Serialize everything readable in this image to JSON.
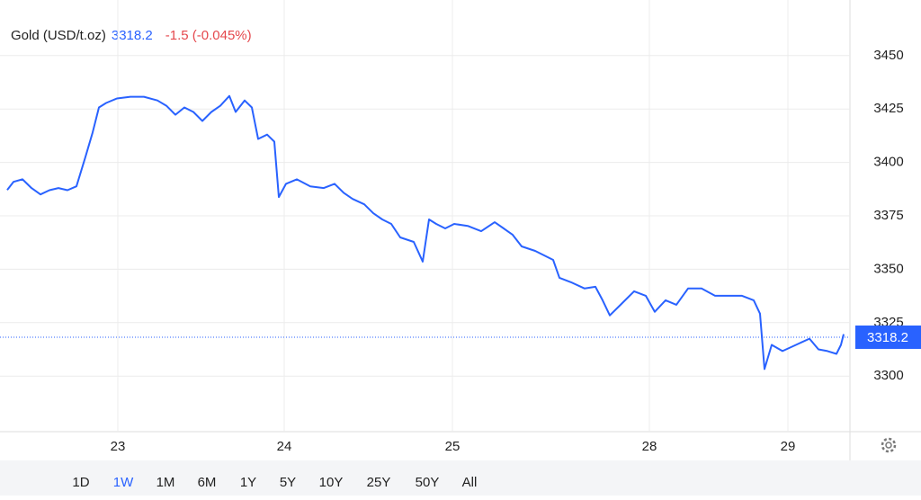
{
  "chart_data": {
    "type": "line",
    "title": "Gold (USD/t.oz)",
    "last_value": 3318.2,
    "change": "-1.5 (-0.045%)",
    "ranges": [
      "1D",
      "1W",
      "1M",
      "6M",
      "1Y",
      "5Y",
      "10Y",
      "25Y",
      "50Y",
      "All"
    ],
    "selected_range": 1,
    "color": "#2962ff",
    "grid": true,
    "xlim": [
      0,
      94.5
    ],
    "xticks": [
      {
        "value": 13.1,
        "label": "23"
      },
      {
        "value": 31.6,
        "label": "24"
      },
      {
        "value": 50.3,
        "label": "25"
      },
      {
        "value": 72.2,
        "label": "28"
      },
      {
        "value": 87.6,
        "label": "29"
      }
    ],
    "ylim": [
      3274,
      3476
    ],
    "yticks": [
      3300,
      3325,
      3350,
      3375,
      3400,
      3425,
      3450
    ],
    "x": [
      0.8,
      1.5,
      2.5,
      3.5,
      4.5,
      5.5,
      6.5,
      7.5,
      8.5,
      9.5,
      10.3,
      11,
      11.8,
      13,
      14.5,
      16,
      17.5,
      18.5,
      19.5,
      20.5,
      21.5,
      22.5,
      23.5,
      24.5,
      25.5,
      26.2,
      27.2,
      28,
      28.7,
      29.7,
      30.5,
      31,
      31.8,
      33,
      34.5,
      36,
      37.2,
      38.2,
      39.2,
      40.5,
      41.5,
      42.5,
      43.5,
      44.5,
      46,
      47,
      47.7,
      48.5,
      49.5,
      50.5,
      52,
      53.5,
      55,
      56,
      57,
      58,
      59.5,
      60.5,
      61.5,
      62.2,
      63.5,
      65,
      66.2,
      67,
      67.8,
      69,
      70.5,
      71.8,
      72.8,
      74,
      75.2,
      76.5,
      78,
      79.5,
      81,
      82.5,
      83.8,
      84.5,
      85,
      85.8,
      87,
      88.5,
      90,
      91,
      92,
      93,
      93.5,
      93.8
    ],
    "values": [
      3387.1,
      3390.9,
      3392.1,
      3388,
      3385,
      3387,
      3388,
      3387,
      3388.8,
      3402.6,
      3414,
      3425.7,
      3427.8,
      3429.9,
      3430.7,
      3430.7,
      3429,
      3426.5,
      3422.3,
      3425.7,
      3423.6,
      3419.4,
      3423.6,
      3426.5,
      3431.1,
      3423.6,
      3429,
      3425.7,
      3411,
      3413,
      3409.7,
      3383.8,
      3390,
      3392.1,
      3388.8,
      3388,
      3390,
      3385.8,
      3382.9,
      3380.4,
      3376.2,
      3373.3,
      3371.2,
      3364.9,
      3362.8,
      3353.6,
      3373.3,
      3371.2,
      3369.1,
      3371.2,
      3370.3,
      3367.8,
      3372,
      3369.1,
      3366.1,
      3360.7,
      3358.6,
      3356.5,
      3354.4,
      3346,
      3343.9,
      3341,
      3341.8,
      3335.5,
      3328.4,
      3333.4,
      3339.7,
      3337.6,
      3330.1,
      3335.5,
      3333.4,
      3341,
      3341,
      3337.6,
      3337.6,
      3337.6,
      3335.5,
      3329.2,
      3303.3,
      3314.6,
      3311.7,
      3314.6,
      3317.5,
      3312.5,
      3311.7,
      3310.4,
      3314.6,
      3319.6
    ]
  }
}
